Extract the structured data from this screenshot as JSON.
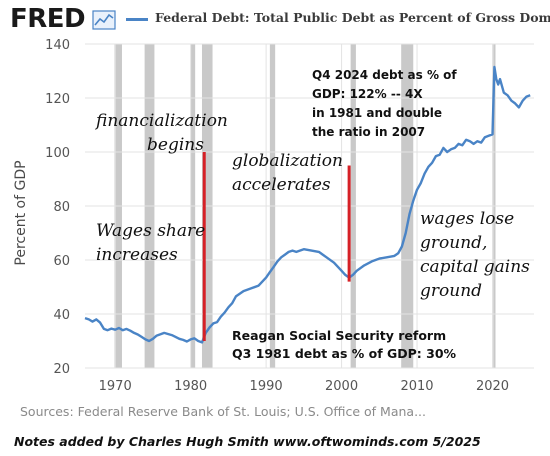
{
  "header": {
    "logo": "FRED",
    "legend_label": "Federal Debt: Total Public Debt as Percent of Gross Domestic Product"
  },
  "chart_data": {
    "type": "line",
    "title": "Federal Debt: Total Public Debt as Percent of Gross Domestic Product",
    "ylabel": "Percent of GDP",
    "xlabel": "",
    "ylim": [
      20,
      140
    ],
    "xlim": [
      1966,
      2025.5
    ],
    "yticks": [
      20,
      40,
      60,
      80,
      100,
      120,
      140
    ],
    "xticks": [
      1970,
      1980,
      1990,
      2000,
      2010,
      2020
    ],
    "grid": true,
    "line_color": "#4a84c6",
    "recession_color": "#c9c9c9",
    "annotation_color": "#d62026",
    "recessions": [
      [
        1969.9,
        1970.9
      ],
      [
        1973.9,
        1975.2
      ],
      [
        1980.0,
        1980.6
      ],
      [
        1981.5,
        1982.9
      ],
      [
        1990.5,
        1991.2
      ],
      [
        2001.2,
        2001.9
      ],
      [
        2007.9,
        2009.5
      ],
      [
        2020.1,
        2020.4
      ]
    ],
    "series": [
      {
        "name": "Federal Debt: Total Public Debt as Percent of Gross Domestic Product",
        "x": [
          1966,
          1966.5,
          1967,
          1967.5,
          1968,
          1968.5,
          1969,
          1969.5,
          1970,
          1970.5,
          1971,
          1971.5,
          1972,
          1972.5,
          1973,
          1973.5,
          1974,
          1974.5,
          1975,
          1975.5,
          1976,
          1976.5,
          1977,
          1977.5,
          1978,
          1978.5,
          1979,
          1979.5,
          1980,
          1980.5,
          1981,
          1981.5,
          1982,
          1982.5,
          1983,
          1983.5,
          1984,
          1984.5,
          1985,
          1985.5,
          1986,
          1986.5,
          1987,
          1988,
          1989,
          1990,
          1990.5,
          1991,
          1991.5,
          1992,
          1992.5,
          1993,
          1993.5,
          1994,
          1995,
          1996,
          1997,
          1997.5,
          1998,
          1999,
          2000,
          2000.5,
          2001,
          2001.5,
          2002,
          2003,
          2004,
          2005,
          2006,
          2007,
          2007.5,
          2008,
          2008.5,
          2009,
          2009.5,
          2010,
          2010.5,
          2011,
          2011.5,
          2012,
          2012.5,
          2013,
          2013.5,
          2014,
          2014.5,
          2015,
          2015.5,
          2016,
          2016.5,
          2017,
          2017.5,
          2018,
          2018.5,
          2019,
          2019.5,
          2020,
          2020.25,
          2020.5,
          2020.75,
          2021,
          2021.5,
          2022,
          2022.5,
          2023,
          2023.5,
          2024,
          2024.5,
          2025
        ],
        "y": [
          38.5,
          38.0,
          37.2,
          38.0,
          36.8,
          34.5,
          34.0,
          34.6,
          34.2,
          34.8,
          34.0,
          34.5,
          33.8,
          33.0,
          32.4,
          31.5,
          30.6,
          30.0,
          30.8,
          32.0,
          32.5,
          33.0,
          32.6,
          32.2,
          31.5,
          30.8,
          30.4,
          29.8,
          30.6,
          31.0,
          30.0,
          29.5,
          33.0,
          35.0,
          36.5,
          37.0,
          39.0,
          40.5,
          42.5,
          44.0,
          46.5,
          47.5,
          48.5,
          49.5,
          50.5,
          53.5,
          55.5,
          57.5,
          59.5,
          61.0,
          62.0,
          63.0,
          63.5,
          63.0,
          64.0,
          63.5,
          63.0,
          62.0,
          61.0,
          59.0,
          56.0,
          54.5,
          53.5,
          54.5,
          56.0,
          58.0,
          59.5,
          60.5,
          61.0,
          61.5,
          62.5,
          65.0,
          70.0,
          77.0,
          82.0,
          86.0,
          88.5,
          92.0,
          94.5,
          96.0,
          98.5,
          99.0,
          101.5,
          100.0,
          101.0,
          101.5,
          103.0,
          102.5,
          104.5,
          104.0,
          103.0,
          104.0,
          103.5,
          105.5,
          106.0,
          106.5,
          131.5,
          127.0,
          125.0,
          127.0,
          122.0,
          121.0,
          119.0,
          118.0,
          116.5,
          119.0,
          120.5,
          121.0
        ]
      }
    ],
    "annotations": {
      "financialization": "financialization begins",
      "globalization": "globalization accelerates",
      "wages_share": "Wages share increases",
      "wages_lose": "wages lose ground, capital gains ground",
      "q4_note": "Q4 2024 debt as % of GDP: 122% -- 4X the ratio in 1981 and double the ratio in 2007",
      "reagan": "Reagan Social Security reform",
      "q3_note": "Q3 1981 debt as % of GDP: 30%"
    },
    "annotation_lines": [
      {
        "x": 1981.8,
        "y_from": 30,
        "y_to": 100
      },
      {
        "x": 2001.0,
        "y_from": 52,
        "y_to": 95
      }
    ]
  },
  "footer": {
    "source": "Sources: Federal Reserve Bank of St. Louis; U.S. Office of Mana...",
    "notes": "Notes added by Charles Hugh Smith   www.oftwominds.com  5/2025"
  }
}
